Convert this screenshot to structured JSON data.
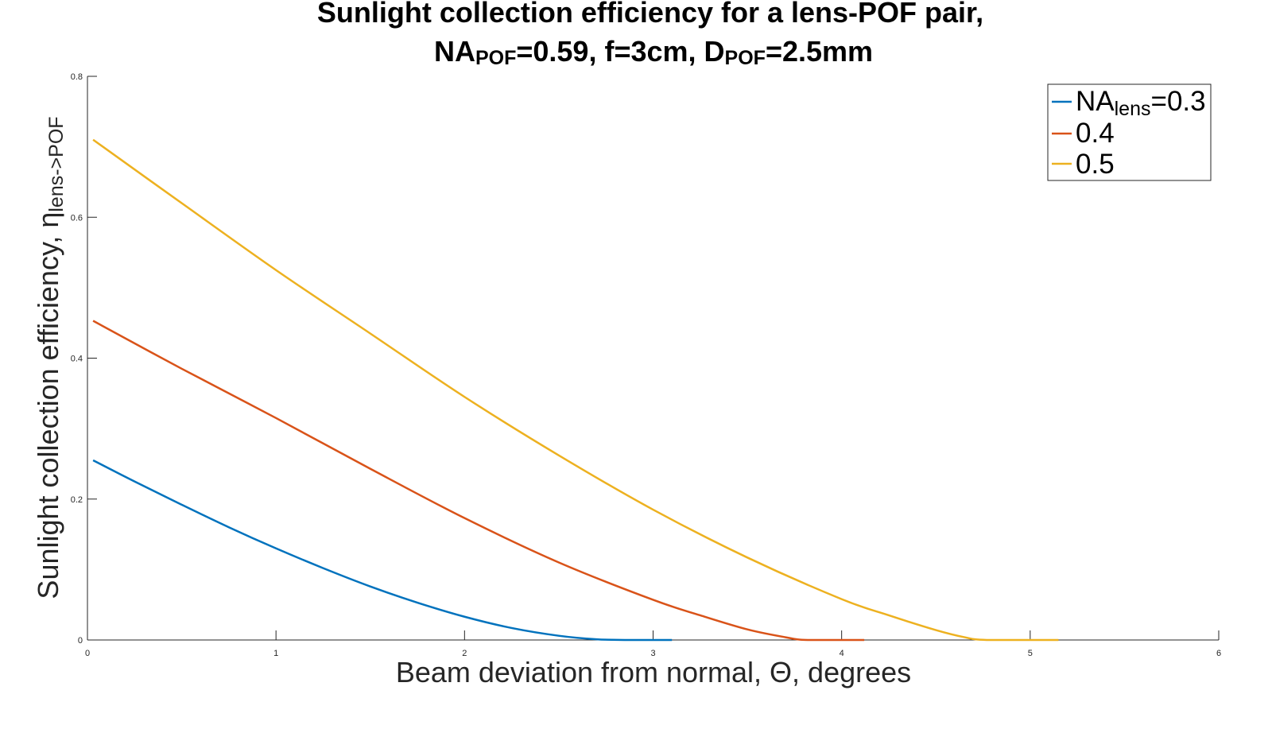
{
  "chart_data": {
    "type": "line",
    "title": {
      "line1": "Sunlight collection efficiency for a lens-POF pair,",
      "line2": {
        "p1": "NA",
        "p1_sub": "POF",
        "p2": "=0.59, f=3cm, D",
        "p2_sub": "POF",
        "p3": "=2.5mm"
      }
    },
    "xlabel": "Beam deviation from normal, Θ, degrees",
    "ylabel": {
      "main": "Sunlight collection efficiency, η",
      "sub": "lens->POF"
    },
    "xlim": [
      0,
      6
    ],
    "ylim": [
      0,
      0.8
    ],
    "xticks": [
      "0",
      "1",
      "2",
      "3",
      "4",
      "5",
      "6"
    ],
    "yticks": [
      "0",
      "0.2",
      "0.4",
      "0.6",
      "0.8"
    ],
    "grid": false,
    "legend": {
      "location": "top-right",
      "entries": [
        {
          "text": "NA",
          "sub": "lens",
          "suffix": "=0.3"
        },
        {
          "text": "0.4",
          "sub": "",
          "suffix": ""
        },
        {
          "text": "0.5",
          "sub": "",
          "suffix": ""
        }
      ]
    },
    "series": [
      {
        "name": "0.3",
        "color": "#0072BD",
        "x": [
          0.03,
          0.25,
          0.5,
          0.75,
          1.0,
          1.25,
          1.5,
          1.75,
          2.0,
          2.25,
          2.5,
          2.7,
          2.85,
          3.1
        ],
        "y": [
          0.255,
          0.225,
          0.192,
          0.16,
          0.13,
          0.102,
          0.076,
          0.053,
          0.033,
          0.017,
          0.006,
          0.001,
          0.0,
          0.0
        ]
      },
      {
        "name": "0.4",
        "color": "#D95319",
        "x": [
          0.03,
          0.5,
          1.0,
          1.5,
          2.0,
          2.5,
          3.0,
          3.25,
          3.5,
          3.7,
          3.82,
          4.12
        ],
        "y": [
          0.453,
          0.385,
          0.315,
          0.243,
          0.173,
          0.11,
          0.057,
          0.035,
          0.015,
          0.004,
          0.0,
          0.0
        ]
      },
      {
        "name": "0.5",
        "color": "#EDB120",
        "x": [
          0.03,
          0.5,
          1.0,
          1.5,
          2.0,
          2.5,
          3.0,
          3.5,
          4.0,
          4.25,
          4.5,
          4.65,
          4.77,
          5.15
        ],
        "y": [
          0.71,
          0.62,
          0.525,
          0.435,
          0.345,
          0.262,
          0.185,
          0.117,
          0.058,
          0.035,
          0.014,
          0.004,
          0.0,
          0.0
        ]
      }
    ]
  }
}
